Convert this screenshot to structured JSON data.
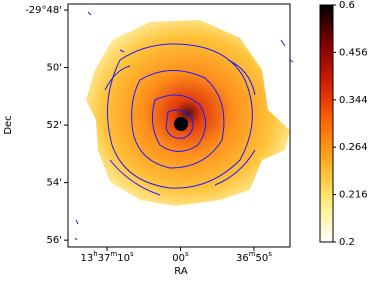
{
  "chart_data": {
    "type": "image",
    "xlabel": "RA",
    "ylabel": "Dec",
    "xlim": [
      204.3138,
      204.1879
    ],
    "xticks": [
      {
        "value": 204.291667,
        "label": "13h37m10s"
      },
      {
        "value": 204.25,
        "label": "00s"
      },
      {
        "value": 204.208333,
        "label": "36m50s"
      }
    ],
    "ylim": [
      -29.9373,
      -29.7965
    ],
    "yticks": [
      {
        "value": -29.8,
        "label": "-29°48'"
      },
      {
        "value": -29.833333,
        "label": "50'"
      },
      {
        "value": -29.866667,
        "label": "52'"
      },
      {
        "value": -29.9,
        "label": "54'"
      },
      {
        "value": -29.933333,
        "label": "56'"
      }
    ],
    "contour_color": "#1a1aff",
    "colorbar": {
      "lim": [
        0.2,
        0.6
      ],
      "ticks": [
        0.2,
        0.216,
        0.264,
        0.344,
        0.456,
        0.6
      ],
      "stretch": "sqrt",
      "colors": [
        "#ffffff",
        "#ffee80",
        "#ffb020",
        "#ff6a00",
        "#d42000",
        "#800000",
        "#000000"
      ]
    }
  }
}
